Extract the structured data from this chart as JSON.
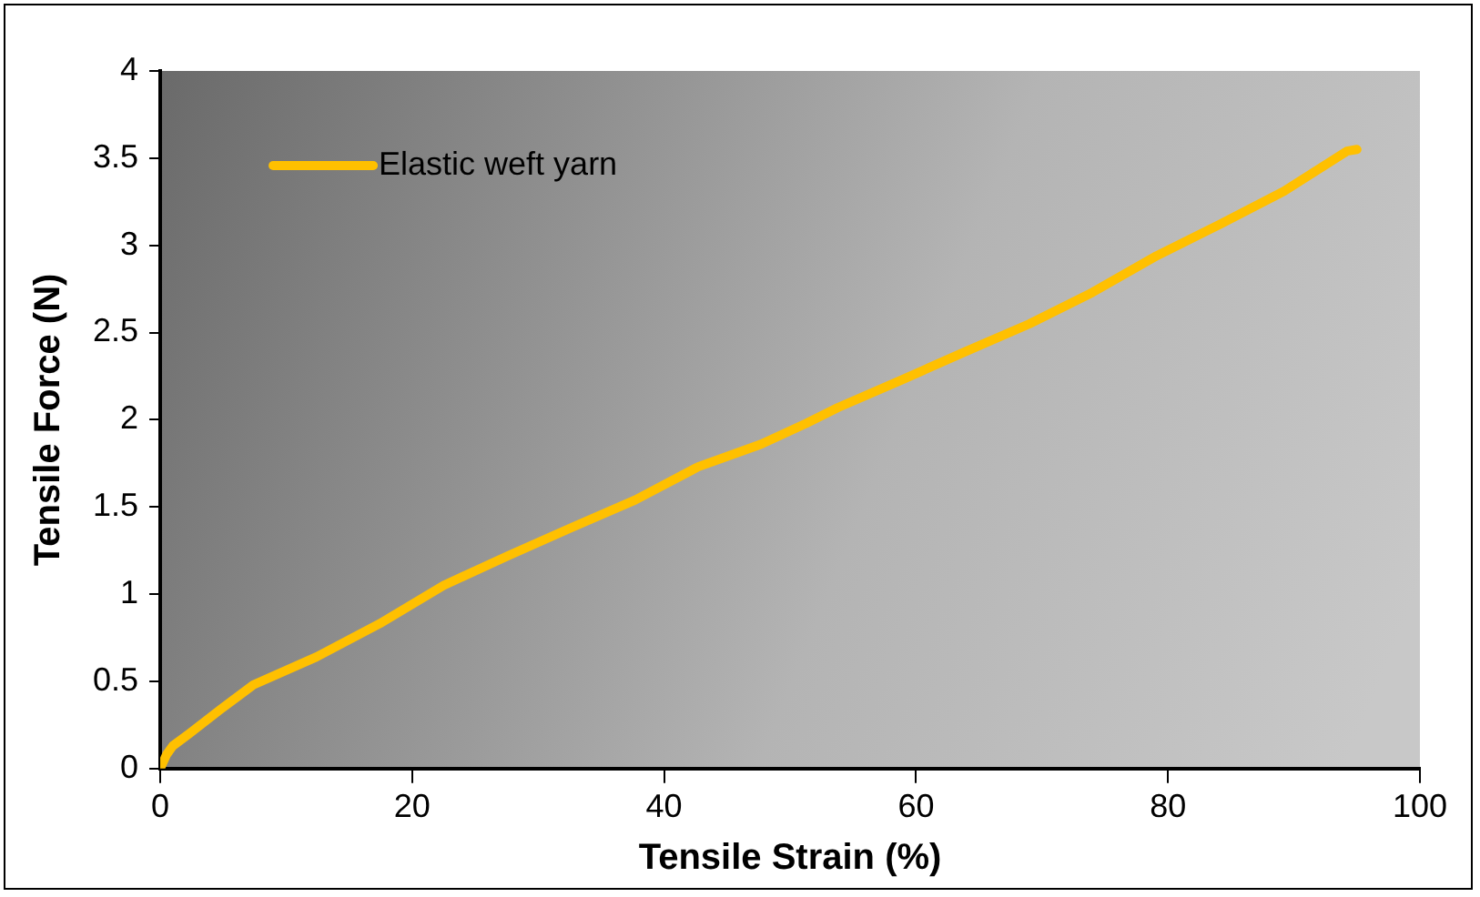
{
  "chart_data": {
    "type": "line",
    "xlabel": "Tensile Strain (%)",
    "ylabel": "Tensile Force (N)",
    "xlim": [
      0,
      100
    ],
    "xticks": [
      0,
      20,
      40,
      60,
      80,
      100
    ],
    "ylim": [
      0,
      4
    ],
    "yticks": [
      0,
      0.5,
      1,
      1.5,
      2,
      2.5,
      3,
      3.5,
      4
    ],
    "grid": false,
    "legend": "top left",
    "marker": "none",
    "line_style": "solid",
    "series": [
      {
        "name": "Elastic weft yarn",
        "color": "#ffc000",
        "x": [
          0,
          0.5,
          1,
          2.3,
          4.8,
          7.4,
          12.4,
          17.4,
          22.5,
          27.6,
          32.6,
          37.7,
          42.7,
          47.7,
          51.3,
          53.8,
          58.9,
          63.9,
          69,
          74,
          79.1,
          84.1,
          89.2,
          94.2,
          95
        ],
        "values": [
          0,
          0.08,
          0.13,
          0.2,
          0.34,
          0.48,
          0.64,
          0.83,
          1.05,
          1.22,
          1.38,
          1.54,
          1.73,
          1.86,
          1.98,
          2.07,
          2.23,
          2.39,
          2.55,
          2.73,
          2.94,
          3.12,
          3.31,
          3.54,
          3.55
        ]
      }
    ]
  }
}
